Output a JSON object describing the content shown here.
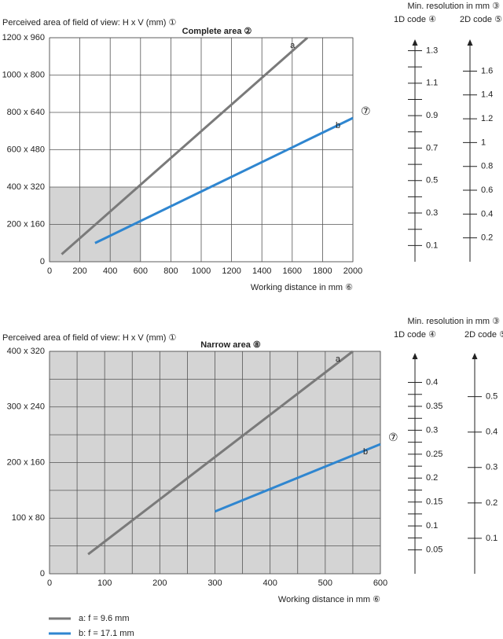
{
  "chart_data": [
    {
      "type": "line",
      "title": "Complete area ②",
      "ylabel": "Perceived area of field of view: H x V (mm) ①",
      "xlabel": "Working distance in mm ⑥",
      "annotation": "⑦",
      "grid": true,
      "xlim": [
        0,
        2000
      ],
      "xticks": [
        0,
        200,
        400,
        600,
        800,
        1000,
        1200,
        1400,
        1600,
        1800,
        2000
      ],
      "ylim": [
        0,
        1200
      ],
      "yticks": [
        0,
        {
          "value": 200,
          "label": "200 x 160"
        },
        {
          "value": 400,
          "label": "400 x 320"
        },
        {
          "value": 600,
          "label": "600 x 480"
        },
        {
          "value": 800,
          "label": "800 x 640"
        },
        {
          "value": 1000,
          "label": "1000 x 800"
        },
        {
          "value": 1200,
          "label": "1200 x 960"
        }
      ],
      "shaded_region": {
        "x": [
          0,
          600
        ],
        "y": [
          0,
          400
        ]
      },
      "series": [
        {
          "name": "a: f = 9.6 mm",
          "line_label": "a",
          "color": "#7a7a7a",
          "x": [
            80,
            1700
          ],
          "values": [
            40,
            1200
          ]
        },
        {
          "name": "b: f = 17.1 mm",
          "line_label": "b",
          "color": "#2f86d0",
          "x": [
            300,
            2000
          ],
          "values": [
            100,
            770
          ]
        }
      ],
      "resolution_title": "Min. resolution in mm ③",
      "scales": [
        {
          "name": "1D code ④",
          "lim": [
            0,
            1.38
          ],
          "ticks": [
            0.1,
            0.3,
            0.5,
            0.7,
            0.9,
            1.1,
            1.3
          ],
          "minor_ticks": [
            0.2,
            0.4,
            0.6,
            0.8,
            1.0,
            1.2
          ]
        },
        {
          "name": "2D code ⑤",
          "lim": [
            0,
            1.88
          ],
          "ticks": [
            0.2,
            0.4,
            0.6,
            0.8,
            1.0,
            1.2,
            1.4,
            1.6
          ],
          "minor_ticks": []
        }
      ]
    },
    {
      "type": "line",
      "title": "Narrow area ⑧",
      "ylabel": "Perceived area of field of view: H x V (mm) ①",
      "xlabel": "Working distance in mm ⑥",
      "annotation": "⑦",
      "grid": true,
      "xlim": [
        0,
        600
      ],
      "xticks": [
        0,
        100,
        200,
        300,
        400,
        500,
        600
      ],
      "xminorticks": [
        50,
        150,
        250,
        350,
        450,
        550
      ],
      "ylim": [
        0,
        400
      ],
      "yticks": [
        0,
        {
          "value": 100,
          "label": "100 x 80"
        },
        {
          "value": 200,
          "label": "200 x 160"
        },
        {
          "value": 300,
          "label": "300 x 240"
        },
        {
          "value": 400,
          "label": "400 x 320"
        }
      ],
      "yminorticks": [
        50,
        150,
        250,
        350
      ],
      "shaded_region": {
        "x": [
          0,
          600
        ],
        "y": [
          0,
          400
        ]
      },
      "series": [
        {
          "name": "a: f = 9.6 mm",
          "line_label": "a",
          "color": "#7a7a7a",
          "x": [
            70,
            550
          ],
          "values": [
            35,
            400
          ]
        },
        {
          "name": "b: f = 17.1 mm",
          "line_label": "b",
          "color": "#2f86d0",
          "x": [
            300,
            600
          ],
          "values": [
            112,
            233
          ]
        }
      ],
      "resolution_title": "Min. resolution in mm ③",
      "scales": [
        {
          "name": "1D code ④",
          "lim": [
            0,
            0.465
          ],
          "ticks": [
            0.05,
            0.1,
            0.15,
            0.2,
            0.25,
            0.3,
            0.35,
            0.4
          ],
          "minor_ticks": [
            0.075,
            0.125,
            0.175,
            0.225,
            0.275,
            0.325,
            0.375
          ]
        },
        {
          "name": "2D code ⑤",
          "lim": [
            0,
            0.628
          ],
          "ticks": [
            0.1,
            0.2,
            0.3,
            0.4,
            0.5
          ],
          "minor_ticks": []
        }
      ]
    }
  ]
}
